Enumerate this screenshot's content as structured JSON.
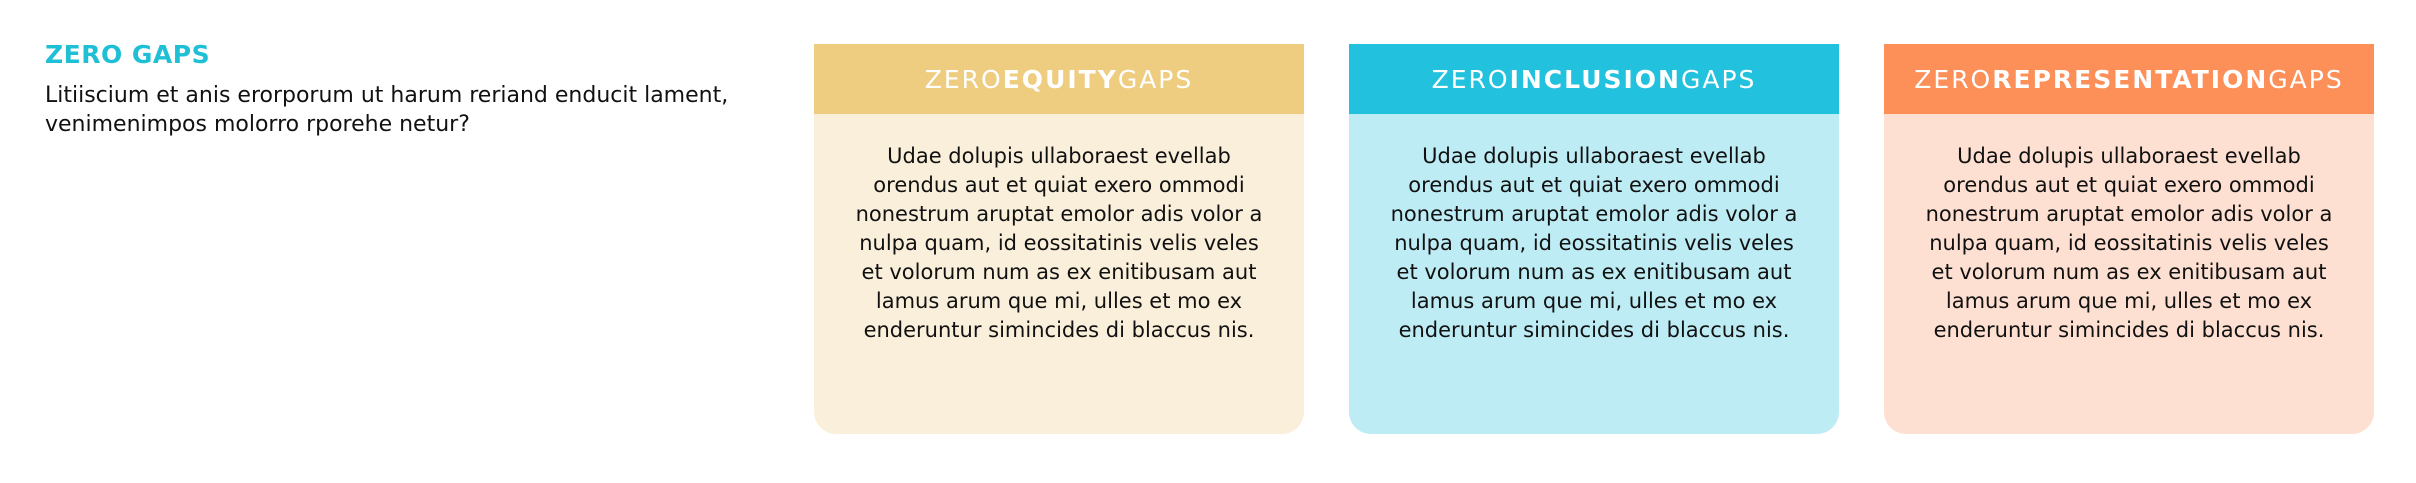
{
  "intro": {
    "title": "ZERO GAPS",
    "text": "Litiiscium et anis erorporum ut harum reriand enducit lament, venimenimpos molorro rporehe netur?"
  },
  "cards": [
    {
      "prefix": "ZERO ",
      "strong": "EQUITY",
      "suffix": " GAPS",
      "body": "Udae dolupis ullaboraest evellab orendus aut et quiat exero ommodi nonestrum aruptat emolor adis volor a nulpa quam, id eossitatinis velis veles et volorum num as ex enitibusam aut lamus arum que mi, ulles et mo ex enderuntur simincides di blaccus nis."
    },
    {
      "prefix": "ZERO ",
      "strong": "INCLUSION",
      "suffix": " GAPS",
      "body": "Udae dolupis ullaboraest evellab orendus aut et quiat exero ommodi nonestrum aruptat emolor adis volor a nulpa quam, id eossitatinis velis veles et volorum num as ex enitibusam aut lamus arum que mi, ulles et mo ex enderuntur simincides di blaccus nis."
    },
    {
      "prefix": "ZERO ",
      "strong": "REPRESENTATION",
      "suffix": " GAPS",
      "body": "Udae dolupis ullaboraest evellab orendus aut et quiat exero ommodi nonestrum aruptat emolor adis volor a nulpa quam, id eossitatinis velis veles et volorum num as ex enitibusam aut lamus arum que mi, ulles et mo ex enderuntur simincides di blaccus nis."
    }
  ],
  "colors": {
    "title": "#1fbfd6",
    "equity_header": "#eecd80",
    "equity_body": "#f9efda",
    "inclusion_header": "#22c1dd",
    "inclusion_body": "#bdecf4",
    "representation_header": "#fd8f58",
    "representation_body": "#fde0d1"
  }
}
